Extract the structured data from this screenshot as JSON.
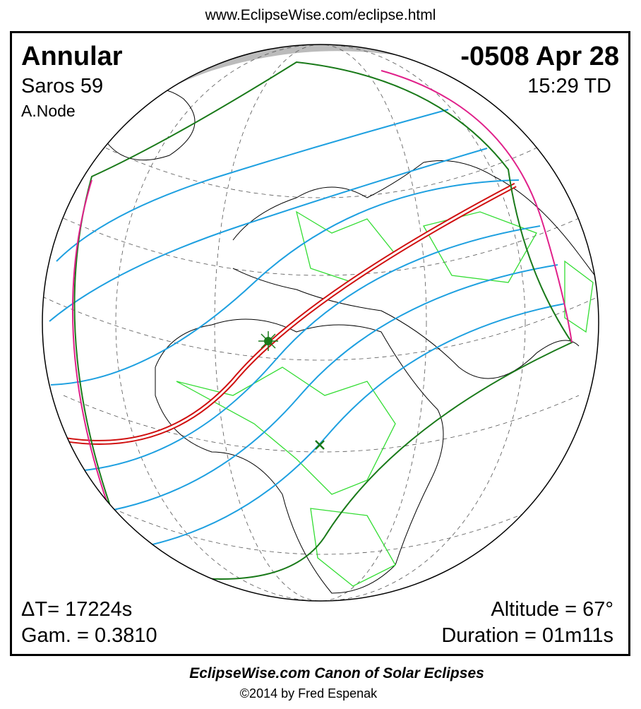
{
  "header": {
    "url": "www.EclipseWise.com/eclipse.html"
  },
  "panel": {
    "eclipse_type": "Annular",
    "saros": "Saros  59",
    "node": "A.Node",
    "date": "-0508 Apr 28",
    "time": "15:29 TD",
    "delta_t": "ΔT=  17224s",
    "gamma": "Gam. = 0.3810",
    "altitude": "Altitude = 67°",
    "duration": "Duration = 01m11s"
  },
  "footer": {
    "title": "EclipseWise.com Canon of Solar Eclipses",
    "credit": "©2014 by Fred Espenak"
  }
}
